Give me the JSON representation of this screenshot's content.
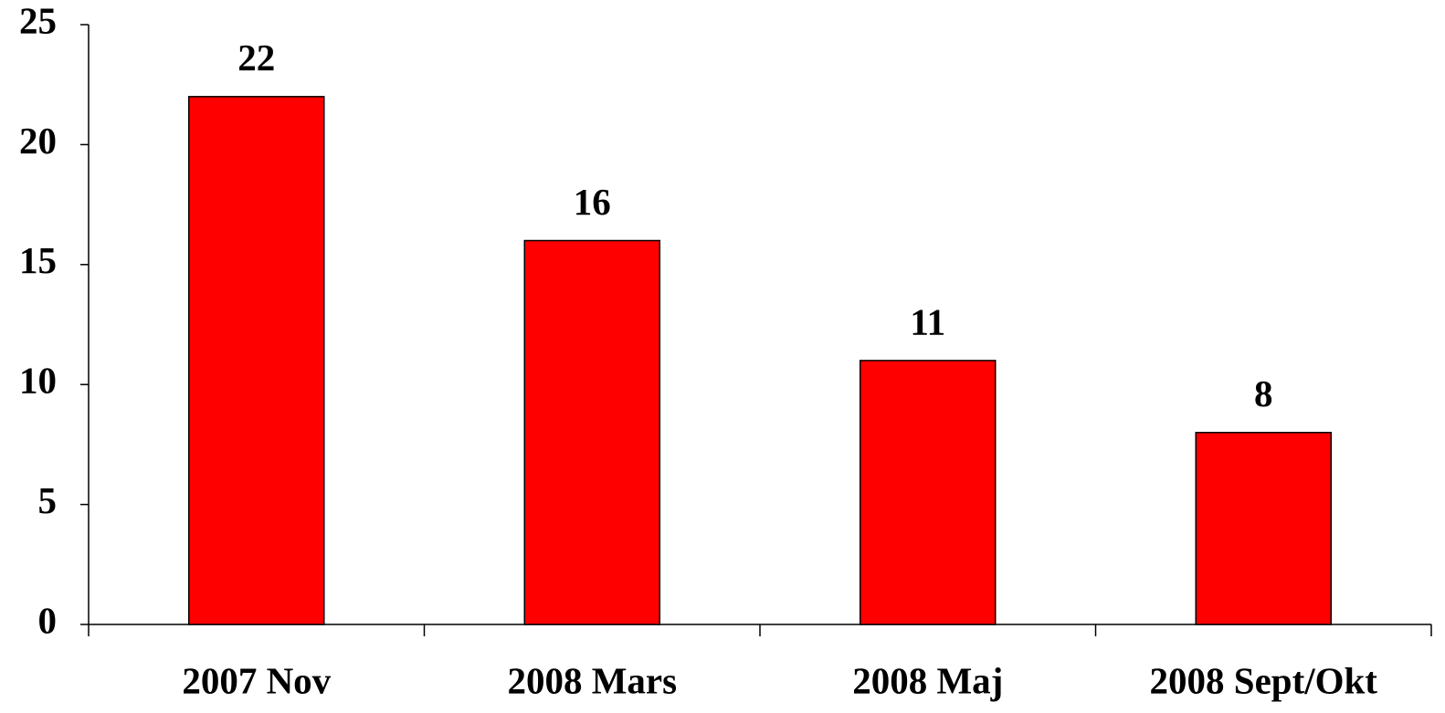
{
  "chart_data": {
    "type": "bar",
    "categories": [
      "2007 Nov",
      "2008 Mars",
      "2008 Maj",
      "2008 Sept/Okt"
    ],
    "values": [
      22,
      16,
      11,
      8
    ],
    "color": "#ff0000",
    "ylim": [
      0,
      25
    ],
    "yticks": [
      0,
      5,
      10,
      15,
      20,
      25
    ],
    "grid": false
  }
}
